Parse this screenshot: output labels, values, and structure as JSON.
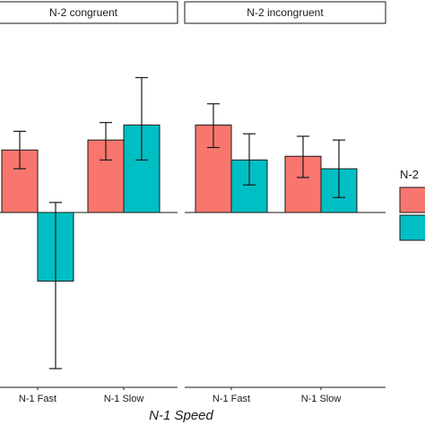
{
  "chart_data": {
    "type": "bar",
    "xlabel": "N-1 Speed",
    "categories": [
      "N-1 Fast",
      "N-1 Slow"
    ],
    "ylim": [
      -14,
      15
    ],
    "zero_line": true,
    "legend": {
      "title": "N-2",
      "placement": "right",
      "entries": [
        "",
        ""
      ]
    },
    "colors": [
      "#f8766d",
      "#00bfc4"
    ],
    "facets": [
      {
        "label": "N-2 congruent",
        "series": [
          {
            "values": [
              5,
              5.8
            ],
            "err_low": [
              3.5,
              4.2
            ],
            "err_high": [
              6.5,
              7.2
            ]
          },
          {
            "values": [
              -5.5,
              7
            ],
            "err_low": [
              -12.5,
              4.2
            ],
            "err_high": [
              0.8,
              10.8
            ]
          }
        ]
      },
      {
        "label": "N-2 incongruent",
        "series": [
          {
            "values": [
              7,
              4.5
            ],
            "err_low": [
              5.2,
              2.8
            ],
            "err_high": [
              8.7,
              6.1
            ]
          },
          {
            "values": [
              4.2,
              3.5
            ],
            "err_low": [
              2.2,
              1.2
            ],
            "err_high": [
              6.3,
              5.8
            ]
          }
        ]
      }
    ]
  }
}
